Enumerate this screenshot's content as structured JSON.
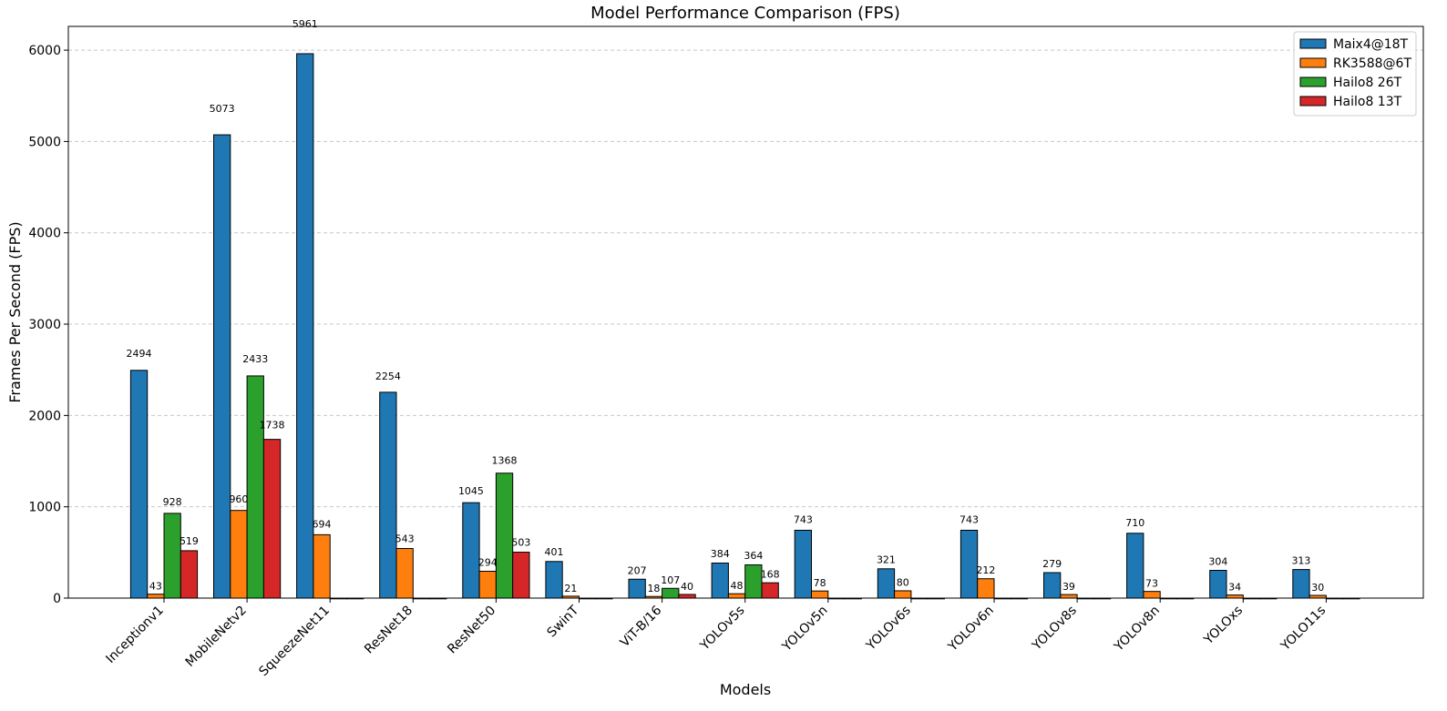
{
  "chart_data": {
    "type": "bar",
    "title": "Model Performance Comparison (FPS)",
    "xlabel": "Models",
    "ylabel": "Frames Per Second (FPS)",
    "ylim": [
      0,
      6260
    ],
    "yticks": [
      0,
      1000,
      2000,
      3000,
      4000,
      5000,
      6000
    ],
    "grid": "y-dashed",
    "legend_position": "top-right",
    "categories": [
      "Inceptionv1",
      "MobileNetv2",
      "SqueezeNet11",
      "ResNet18",
      "ResNet50",
      "SwinT",
      "ViT-B/16",
      "YOLOv5s",
      "YOLOv5n",
      "YOLOv6s",
      "YOLOv6n",
      "YOLOv8s",
      "YOLOv8n",
      "YOLOxs",
      "YOLO11s"
    ],
    "series": [
      {
        "name": "Maix4@18T",
        "color": "#1f77b4",
        "values": [
          2494,
          5073,
          5961,
          2254,
          1045,
          401,
          207,
          384,
          743,
          321,
          743,
          279,
          710,
          304,
          313
        ]
      },
      {
        "name": "RK3588@6T",
        "color": "#ff7f0e",
        "values": [
          43,
          960,
          694,
          543,
          294,
          21,
          18,
          48,
          78,
          80,
          212,
          39,
          73,
          34,
          30
        ]
      },
      {
        "name": "Hailo8 26T",
        "color": "#2ca02c",
        "values": [
          928,
          2433,
          0,
          0,
          1368,
          0,
          107,
          364,
          0,
          0,
          0,
          0,
          0,
          0,
          0
        ]
      },
      {
        "name": "Hailo8 13T",
        "color": "#d62728",
        "values": [
          519,
          1738,
          0,
          0,
          503,
          0,
          40,
          168,
          0,
          0,
          0,
          0,
          0,
          0,
          0
        ]
      }
    ]
  }
}
